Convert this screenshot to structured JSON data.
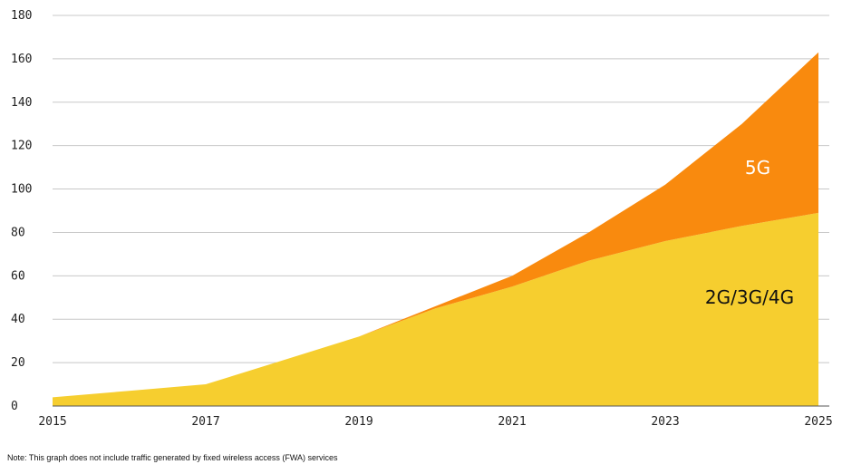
{
  "chart_data": {
    "type": "area",
    "stacked": true,
    "x": [
      2015,
      2016,
      2017,
      2018,
      2019,
      2020,
      2021,
      2022,
      2023,
      2024,
      2025
    ],
    "x_tick_labels": [
      "2015",
      "2017",
      "2019",
      "2021",
      "2023",
      "2025"
    ],
    "y_ticks": [
      0,
      20,
      40,
      60,
      80,
      100,
      120,
      140,
      160,
      180
    ],
    "xlim": [
      2015,
      2025
    ],
    "ylim": [
      0,
      180
    ],
    "grid": true,
    "series": [
      {
        "name": "2G/3G/4G",
        "color": "#F6CE2F",
        "values": [
          4,
          7,
          10,
          21,
          32,
          45,
          55,
          67,
          76,
          83,
          89
        ]
      },
      {
        "name": "5G",
        "color": "#F98A0E",
        "values": [
          0,
          0,
          0,
          0,
          0,
          1,
          5,
          13,
          26,
          47,
          74
        ]
      }
    ],
    "note": "Note: This graph does not include traffic generated by fixed wireless access (FWA) services"
  }
}
